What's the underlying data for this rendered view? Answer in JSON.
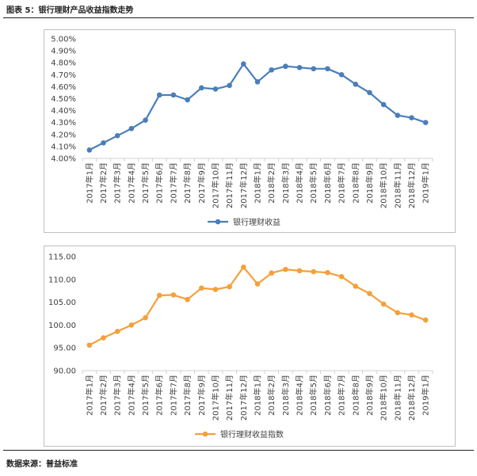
{
  "figure": {
    "title": "图表 5：银行理财产品收益指数走势",
    "source": "数据来源：普益标准"
  },
  "chart_data": [
    {
      "type": "line",
      "title": "",
      "color": "#4a7ebb",
      "legend": "银行理财收益",
      "legend_position": "bottom",
      "categories": [
        "2017年1月",
        "2017年2月",
        "2017年3月",
        "2017年4月",
        "2017年5月",
        "2017年6月",
        "2017年7月",
        "2017年8月",
        "2017年9月",
        "2017年10月",
        "2017年11月",
        "2017年12月",
        "2018年1月",
        "2018年2月",
        "2018年3月",
        "2018年4月",
        "2018年5月",
        "2018年6月",
        "2018年7月",
        "2018年8月",
        "2018年9月",
        "2018年10月",
        "2018年11月",
        "2018年12月",
        "2019年1月"
      ],
      "values": [
        4.07,
        4.13,
        4.19,
        4.25,
        4.32,
        4.53,
        4.53,
        4.49,
        4.59,
        4.58,
        4.61,
        4.79,
        4.64,
        4.74,
        4.77,
        4.76,
        4.75,
        4.75,
        4.7,
        4.62,
        4.55,
        4.45,
        4.36,
        4.34,
        4.3
      ],
      "ylim": [
        4.0,
        5.0
      ],
      "yticks": [
        "4.00%",
        "4.10%",
        "4.20%",
        "4.30%",
        "4.40%",
        "4.50%",
        "4.60%",
        "4.70%",
        "4.80%",
        "4.90%",
        "5.00%"
      ],
      "grid": false
    },
    {
      "type": "line",
      "title": "",
      "color": "#f5a03a",
      "legend": "银行理财收益指数",
      "legend_position": "bottom",
      "categories": [
        "2017年1月",
        "2017年2月",
        "2017年3月",
        "2017年4月",
        "2017年5月",
        "2017年6月",
        "2017年7月",
        "2017年8月",
        "2017年9月",
        "2017年10月",
        "2017年11月",
        "2017年12月",
        "2018年1月",
        "2018年2月",
        "2018年3月",
        "2018年4月",
        "2018年5月",
        "2018年6月",
        "2018年7月",
        "2018年8月",
        "2018年9月",
        "2018年10月",
        "2018年11月",
        "2018年12月",
        "2019年1月"
      ],
      "values": [
        95.6,
        97.2,
        98.6,
        100.0,
        101.6,
        106.5,
        106.6,
        105.6,
        108.1,
        107.8,
        108.4,
        112.7,
        109.0,
        111.4,
        112.2,
        111.9,
        111.7,
        111.5,
        110.6,
        108.5,
        106.9,
        104.6,
        102.7,
        102.2,
        101.1
      ],
      "ylim": [
        90,
        115
      ],
      "yticks": [
        "90.00",
        "95.00",
        "100.00",
        "105.00",
        "110.00",
        "115.00"
      ],
      "grid": false
    }
  ]
}
